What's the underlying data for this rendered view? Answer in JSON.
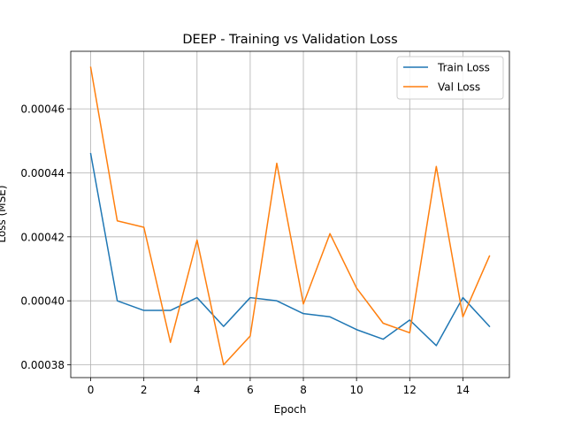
{
  "chart_data": {
    "type": "line",
    "title": "DEEP - Training vs Validation Loss",
    "xlabel": "Epoch",
    "ylabel": "Loss (MSE)",
    "x": [
      0,
      1,
      2,
      3,
      4,
      5,
      6,
      7,
      8,
      9,
      10,
      11,
      12,
      13,
      14,
      15
    ],
    "xlim": [
      -0.75,
      15.75
    ],
    "ylim": [
      0.000376,
      0.000478
    ],
    "xticks": [
      0,
      2,
      4,
      6,
      8,
      10,
      12,
      14
    ],
    "xtick_labels": [
      "0",
      "2",
      "4",
      "6",
      "8",
      "10",
      "12",
      "14"
    ],
    "yticks": [
      0.00038,
      0.0004,
      0.00042,
      0.00044,
      0.00046
    ],
    "ytick_labels": [
      "0.00038",
      "0.00040",
      "0.00042",
      "0.00044",
      "0.00046"
    ],
    "grid": true,
    "legend_position": "top-right",
    "series": [
      {
        "name": "Train Loss",
        "color": "#1f77b4",
        "values": [
          0.000446,
          0.0004,
          0.000397,
          0.000397,
          0.000401,
          0.000392,
          0.000401,
          0.0004,
          0.000396,
          0.000395,
          0.000391,
          0.000388,
          0.000394,
          0.000386,
          0.000401,
          0.000392
        ]
      },
      {
        "name": "Val Loss",
        "color": "#ff7f0e",
        "values": [
          0.000473,
          0.000425,
          0.000423,
          0.000387,
          0.000419,
          0.00038,
          0.000389,
          0.000443,
          0.000399,
          0.000421,
          0.000404,
          0.000393,
          0.00039,
          0.000442,
          0.000395,
          0.000414
        ]
      }
    ]
  }
}
